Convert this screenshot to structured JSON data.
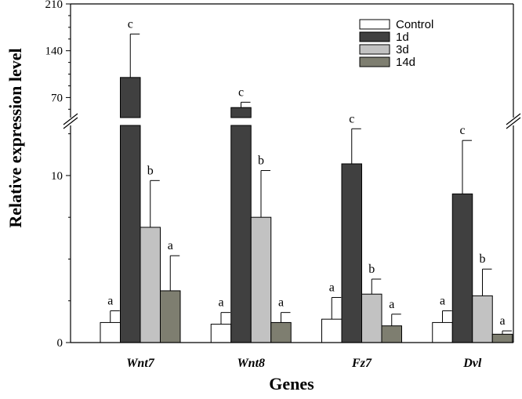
{
  "chart_data": {
    "type": "bar",
    "categories": [
      "Wnt7",
      "Wnt8",
      "Fz7",
      "Dvl"
    ],
    "xlabel": "Genes",
    "ylabel": "Relative expression level",
    "y_break": {
      "lower_range": [
        0,
        13
      ],
      "upper_range": [
        40,
        210
      ]
    },
    "yticks_lower": [
      0,
      10
    ],
    "yticks_upper": [
      70,
      140,
      210
    ],
    "series": [
      {
        "name": "Control",
        "color": "#ffffff",
        "values": [
          1.2,
          1.1,
          1.4,
          1.2
        ],
        "errors": [
          0.7,
          0.7,
          1.3,
          0.7
        ],
        "sig": [
          "a",
          "a",
          "a",
          "a"
        ]
      },
      {
        "name": "1d",
        "color": "#404040",
        "values": [
          100,
          55,
          10.7,
          8.9
        ],
        "errors": [
          65,
          8,
          2.1,
          3.2
        ],
        "sig": [
          "c",
          "c",
          "c",
          "c"
        ]
      },
      {
        "name": "3d",
        "color": "#c2c2c2",
        "values": [
          6.9,
          7.5,
          2.9,
          2.8
        ],
        "errors": [
          2.8,
          2.8,
          0.9,
          1.6
        ],
        "sig": [
          "b",
          "b",
          "b",
          "b"
        ]
      },
      {
        "name": "14d",
        "color": "#7e7e70",
        "values": [
          3.1,
          1.2,
          1.0,
          0.5
        ],
        "errors": [
          2.1,
          0.6,
          0.7,
          0.2
        ],
        "sig": [
          "a",
          "a",
          "a",
          "a"
        ]
      }
    ],
    "legend": {
      "position": "top-right",
      "entries": [
        "Control",
        "1d",
        "3d",
        "14d"
      ]
    },
    "grid": false
  }
}
